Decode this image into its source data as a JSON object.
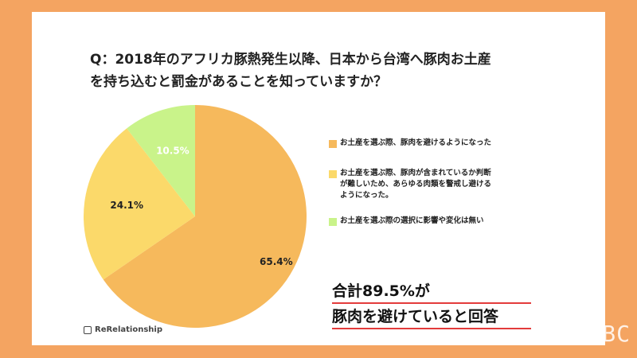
{
  "question": {
    "line1": "Q：2018年のアフリカ豚熱発生以降、日本から台湾へ豚肉お土産",
    "line2": "を持ち込むと罰金があることを知っていますか？"
  },
  "chart_data": {
    "type": "pie",
    "title": "Q：2018年のアフリカ豚熱発生以降、日本から台湾へ豚肉お土産を持ち込むと罰金があることを知っていますか？",
    "slices": [
      {
        "label": "お土産を選ぶ際、豚肉を避けるようになった",
        "value": 65.4,
        "value_label": "65.4%",
        "color": "#f6b95c"
      },
      {
        "label": "お土産を選ぶ際、豚肉が含まれているか判断が難しいため、あらゆる肉類を警戒し避けるようになった。",
        "value": 24.1,
        "value_label": "24.1%",
        "color": "#fbd96a"
      },
      {
        "label": "お土産を選ぶ際の選択に影響や変化は無い",
        "value": 10.5,
        "value_label": "10.5%",
        "color": "#c9f38a"
      }
    ],
    "legend_position": "right"
  },
  "legend": {
    "item1_lines": [
      "お土産を選ぶ際、豚肉を避けるようになった"
    ],
    "item2_lines": [
      "お土産を選ぶ際、豚肉が含まれているか判断",
      "が難しいため、あらゆる肉類を警戒し避ける",
      "ようになった。"
    ],
    "item3_lines": [
      "お土産を選ぶ際の選択に影響や変化は無い"
    ]
  },
  "callout": {
    "line1": "合計89.5%が",
    "line2": "豚肉を避けていると回答"
  },
  "logo": {
    "text": "ReRelationship"
  },
  "watermark": {
    "text": "RBC"
  },
  "colors": {
    "background": "#f4a461",
    "accent_underline": "#e33b3b"
  }
}
